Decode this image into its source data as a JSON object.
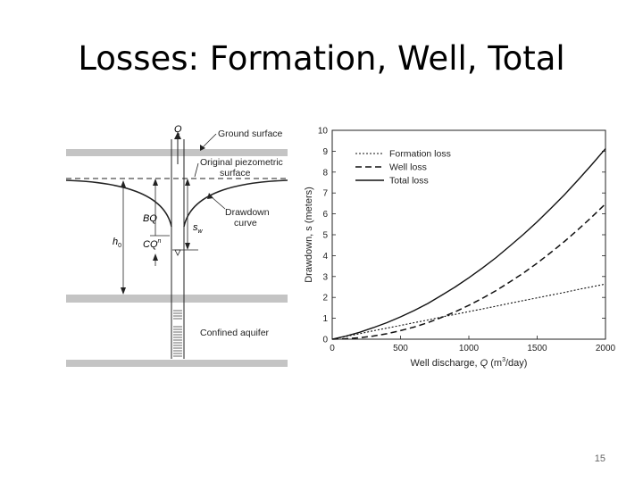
{
  "slide": {
    "title": "Losses: Formation, Well, Total",
    "page_number": "15"
  },
  "diagram": {
    "label_q": "Q",
    "label_ground": "Ground surface",
    "label_piezo_1": "Original piezometric",
    "label_piezo_2": "surface",
    "label_drawdown_1": "Drawdown",
    "label_drawdown_2": "curve",
    "label_bq": "BQ",
    "label_cqn": "CQ",
    "label_cqn_exp": "n",
    "label_h0": "h",
    "label_h0_sub": "0",
    "label_sw": "s",
    "label_sw_sub": "w",
    "label_aquifer": "Confined aquifer",
    "colors": {
      "confining_layer": "#c4c4c4",
      "ink": "#222222"
    }
  },
  "chart_data": {
    "type": "line",
    "xlabel_main": "Well discharge, ",
    "xlabel_q": "Q",
    "xlabel_unit": " (m",
    "xlabel_exp": "3",
    "xlabel_tail": "/day)",
    "ylabel": "Drawdown, s (meters)",
    "xlim": [
      0,
      2000
    ],
    "ylim": [
      0,
      10
    ],
    "x_ticks": [
      0,
      500,
      1000,
      1500,
      2000
    ],
    "y_ticks": [
      0,
      1,
      2,
      3,
      4,
      5,
      6,
      7,
      8,
      9,
      10
    ],
    "x": [
      0,
      100,
      200,
      300,
      400,
      500,
      600,
      700,
      800,
      900,
      1000,
      1100,
      1200,
      1300,
      1400,
      1500,
      1600,
      1700,
      1800,
      1900,
      2000
    ],
    "series": [
      {
        "name": "Formation loss",
        "dash": "dotted",
        "values": [
          0,
          0.13,
          0.26,
          0.4,
          0.53,
          0.66,
          0.79,
          0.92,
          1.06,
          1.19,
          1.32,
          1.45,
          1.58,
          1.72,
          1.85,
          1.98,
          2.11,
          2.24,
          2.38,
          2.51,
          2.64
        ]
      },
      {
        "name": "Well loss",
        "dash": "dashed",
        "values": [
          0,
          0.02,
          0.07,
          0.15,
          0.26,
          0.41,
          0.58,
          0.79,
          1.04,
          1.31,
          1.62,
          1.96,
          2.33,
          2.74,
          3.17,
          3.64,
          4.15,
          4.68,
          5.25,
          5.85,
          6.48
        ]
      },
      {
        "name": "Total loss",
        "dash": "solid",
        "values": [
          0,
          0.15,
          0.33,
          0.55,
          0.79,
          1.07,
          1.37,
          1.71,
          2.1,
          2.5,
          2.94,
          3.41,
          3.91,
          4.46,
          5.02,
          5.62,
          6.26,
          6.92,
          7.63,
          8.36,
          9.12
        ]
      }
    ],
    "legend_position": "top-left",
    "grid": false
  }
}
